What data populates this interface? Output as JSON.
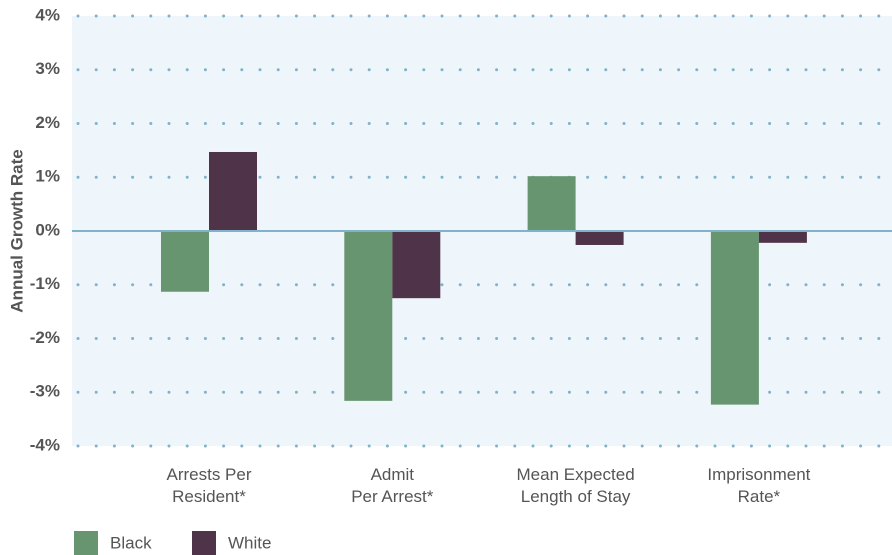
{
  "chart_data": {
    "type": "bar",
    "y_label": "Annual Growth Rate",
    "categories": [
      "Arrests Per\nResident*",
      "Admit\nPer Arrest*",
      "Mean Expected\nLength of Stay",
      "Imprisonment\nRate*"
    ],
    "series": [
      {
        "name": "Black",
        "color": "#66956f",
        "values": [
          -1.13,
          -3.16,
          1.02,
          -3.23
        ]
      },
      {
        "name": "White",
        "color": "#4e3349",
        "values": [
          1.47,
          -1.25,
          -0.26,
          -0.22
        ]
      }
    ],
    "ylim": [
      -4,
      4
    ],
    "yticks": [
      {
        "value": -4,
        "label": "-4%"
      },
      {
        "value": -3,
        "label": "-3%"
      },
      {
        "value": -2,
        "label": "-2%"
      },
      {
        "value": -1,
        "label": "-1%"
      },
      {
        "value": 0,
        "label": "0%"
      },
      {
        "value": 1,
        "label": "1%"
      },
      {
        "value": 2,
        "label": "2%"
      },
      {
        "value": 3,
        "label": "3%"
      },
      {
        "value": 4,
        "label": "4%"
      }
    ],
    "grid": true
  }
}
